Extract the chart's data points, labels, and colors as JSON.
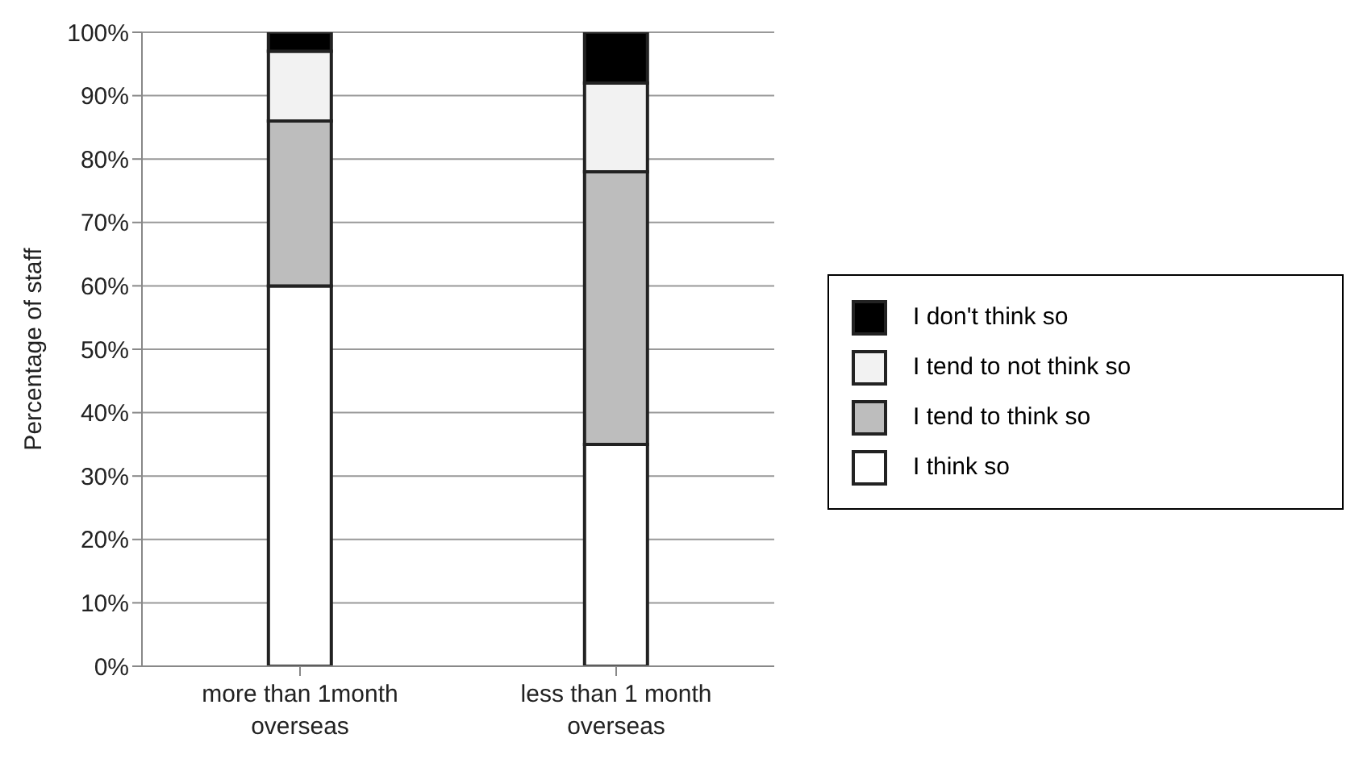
{
  "chart_data": {
    "type": "bar",
    "stacked": true,
    "ylabel": "Percentage of staff",
    "categories": [
      "more than 1month overseas",
      "less than 1 month overseas"
    ],
    "series": [
      {
        "name": "I think so",
        "color": "#ffffff",
        "values": [
          60,
          35
        ]
      },
      {
        "name": "I tend to think so",
        "color": "#bdbdbd",
        "values": [
          26,
          43
        ]
      },
      {
        "name": "I tend to not think so",
        "color": "#f2f2f2",
        "values": [
          11,
          14
        ]
      },
      {
        "name": "I don't think so",
        "color": "#000000",
        "values": [
          3,
          8
        ]
      }
    ],
    "ylim": [
      0,
      100
    ],
    "yticks": [
      {
        "value": 0,
        "label": "0%"
      },
      {
        "value": 10,
        "label": "10%"
      },
      {
        "value": 20,
        "label": "20%"
      },
      {
        "value": 30,
        "label": "30%"
      },
      {
        "value": 40,
        "label": "40%"
      },
      {
        "value": 50,
        "label": "50%"
      },
      {
        "value": 60,
        "label": "60%"
      },
      {
        "value": 70,
        "label": "70%"
      },
      {
        "value": 80,
        "label": "80%"
      },
      {
        "value": 90,
        "label": "90%"
      },
      {
        "value": 100,
        "label": "100%"
      }
    ],
    "grid": "y",
    "legend": "right"
  }
}
